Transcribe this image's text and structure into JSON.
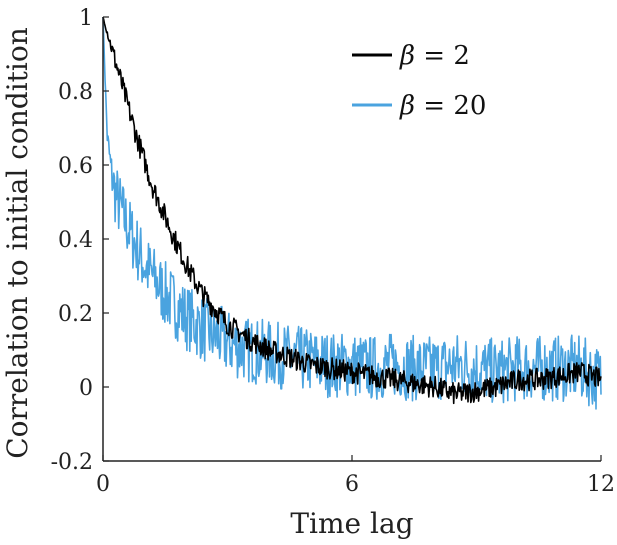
{
  "chart_data": {
    "type": "line",
    "xlabel": "Time lag",
    "ylabel": "Correlation to initial condition",
    "xlim": [
      0,
      12
    ],
    "ylim": [
      -0.2,
      1
    ],
    "xticks": [
      0,
      6,
      12
    ],
    "xtick_labels": [
      "0",
      "6",
      "12"
    ],
    "yticks": [
      -0.2,
      0,
      0.2,
      0.4,
      0.6,
      0.8,
      1
    ],
    "ytick_labels": [
      "-0.2",
      "0",
      "0.2",
      "0.4",
      "0.6",
      "0.8",
      "1"
    ],
    "grid": false,
    "legend_position": "top-right",
    "series": [
      {
        "name": "β = 2",
        "legend_symbol": "β",
        "legend_rhs": "= 2",
        "color": "#000000",
        "x": [
          0,
          0.2,
          0.4,
          0.6,
          0.8,
          1.0,
          1.2,
          1.5,
          1.8,
          2.1,
          2.4,
          2.7,
          3.0,
          3.5,
          4.0,
          4.5,
          5.0,
          5.5,
          6.0,
          6.5,
          7.0,
          7.5,
          8.0,
          8.5,
          9.0,
          9.5,
          10.0,
          10.5,
          11.0,
          11.5,
          12.0
        ],
        "y": [
          1.0,
          0.92,
          0.84,
          0.76,
          0.68,
          0.61,
          0.54,
          0.46,
          0.38,
          0.31,
          0.25,
          0.21,
          0.17,
          0.13,
          0.1,
          0.08,
          0.06,
          0.05,
          0.04,
          0.03,
          0.02,
          0.01,
          0.0,
          -0.02,
          -0.01,
          0.0,
          0.02,
          0.02,
          0.03,
          0.04,
          0.02
        ],
        "noise": 0.03
      },
      {
        "name": "β = 20",
        "legend_symbol": "β",
        "legend_rhs": "= 20",
        "color": "#4aa3df",
        "x": [
          0,
          0.1,
          0.2,
          0.3,
          0.5,
          0.8,
          1.0,
          1.5,
          2.0,
          2.5,
          3.0,
          3.5,
          4.0,
          4.5,
          5.0,
          5.5,
          6.0,
          6.5,
          7.0,
          7.5,
          8.0,
          8.5,
          9.0,
          9.5,
          10.0,
          10.5,
          11.0,
          11.5,
          12.0
        ],
        "y": [
          1.0,
          0.68,
          0.58,
          0.52,
          0.46,
          0.38,
          0.33,
          0.25,
          0.19,
          0.15,
          0.12,
          0.1,
          0.09,
          0.08,
          0.07,
          0.06,
          0.06,
          0.05,
          0.06,
          0.05,
          0.05,
          0.06,
          0.05,
          0.04,
          0.05,
          0.05,
          0.05,
          0.05,
          0.02
        ],
        "noise": 0.09
      }
    ]
  }
}
